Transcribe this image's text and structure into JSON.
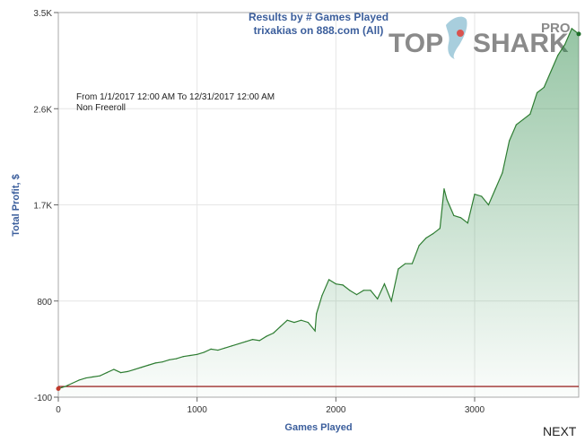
{
  "header": {
    "title_line1": "Results by # Games Played",
    "title_line2": "trixakias on 888.com (All)"
  },
  "logo": {
    "left": "TOP",
    "right": "SHARK",
    "pro": "PRO"
  },
  "filters": {
    "date_range": "From 1/1/2017 12:00 AM To 12/31/2017 12:00 AM",
    "game_type": "Non Freeroll"
  },
  "nav": {
    "next_label": "NEXT"
  },
  "colors": {
    "line": "#2e7d32",
    "fill": "#2e8b4a",
    "zero_line": "#8b0000",
    "title": "#3b5e9c"
  },
  "chart_data": {
    "type": "area",
    "title": "Results by # Games Played",
    "subtitle": "trixakias on 888.com (All)",
    "xlabel": "Games Played",
    "ylabel": "Total Profit, $",
    "xlim": [
      0,
      3750
    ],
    "ylim": [
      -100,
      3500
    ],
    "x_ticks": [
      0,
      1000,
      2000,
      3000
    ],
    "x_tick_labels": [
      "0",
      "1000",
      "2000",
      "3000"
    ],
    "y_ticks": [
      -100,
      800,
      1700,
      2600,
      3500
    ],
    "y_tick_labels": [
      "-100",
      "800",
      "1.7K",
      "2.6K",
      "3.5K"
    ],
    "grid": true,
    "reference_line": 0,
    "series": [
      {
        "x": [
          0,
          50,
          100,
          150,
          200,
          250,
          300,
          350,
          400,
          450,
          500,
          550,
          600,
          650,
          700,
          750,
          800,
          850,
          900,
          950,
          1000,
          1050,
          1100,
          1150,
          1200,
          1250,
          1300,
          1350,
          1400,
          1450,
          1500,
          1550,
          1600,
          1650,
          1700,
          1750,
          1800,
          1850,
          1860,
          1900,
          1950,
          2000,
          2050,
          2100,
          2150,
          2200,
          2250,
          2300,
          2350,
          2400,
          2450,
          2500,
          2550,
          2600,
          2650,
          2700,
          2750,
          2780,
          2800,
          2850,
          2900,
          2950,
          3000,
          3050,
          3100,
          3150,
          3200,
          3250,
          3300,
          3350,
          3400,
          3450,
          3500,
          3550,
          3600,
          3650,
          3700,
          3750
        ],
        "values": [
          -20,
          0,
          30,
          60,
          80,
          90,
          100,
          130,
          160,
          130,
          140,
          160,
          180,
          200,
          220,
          230,
          250,
          260,
          280,
          290,
          300,
          320,
          350,
          340,
          360,
          380,
          400,
          420,
          440,
          430,
          470,
          500,
          560,
          620,
          600,
          620,
          600,
          520,
          680,
          850,
          1000,
          960,
          950,
          900,
          860,
          900,
          900,
          820,
          960,
          800,
          1100,
          1150,
          1150,
          1320,
          1390,
          1430,
          1480,
          1850,
          1750,
          1600,
          1580,
          1530,
          1800,
          1780,
          1700,
          1850,
          2000,
          2300,
          2450,
          2500,
          2550,
          2750,
          2800,
          2950,
          3100,
          3200,
          3350,
          3300
        ]
      }
    ]
  }
}
